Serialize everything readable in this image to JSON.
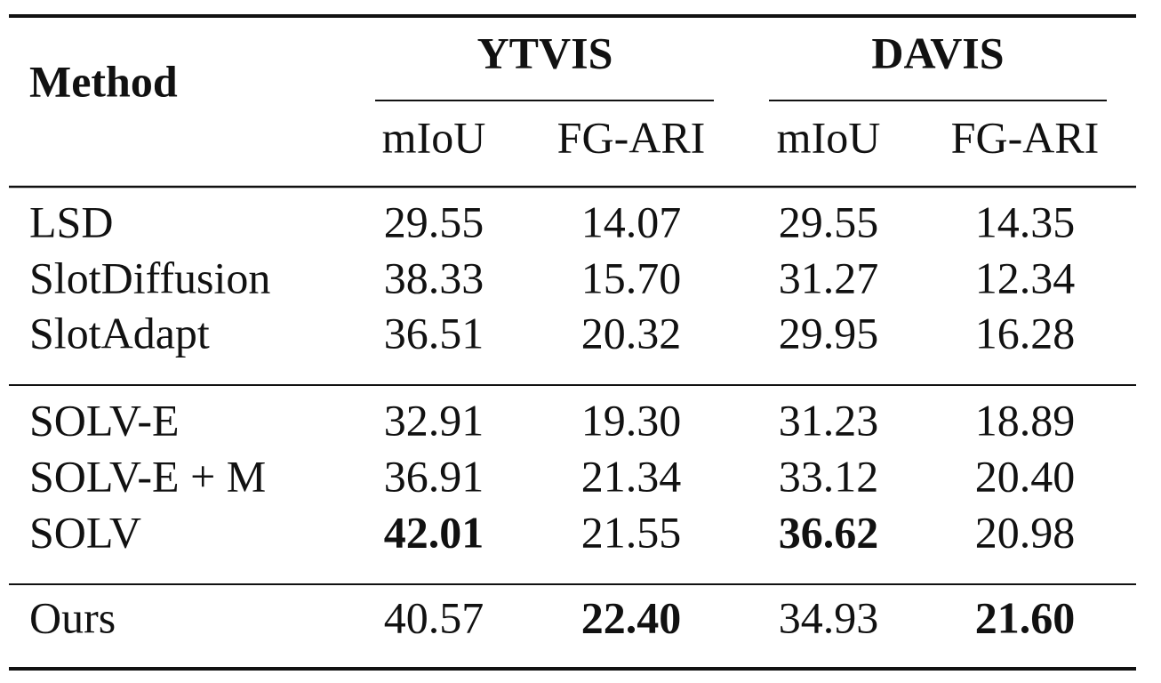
{
  "table": {
    "header": {
      "method": "Method",
      "groups": [
        {
          "name": "YTVIS",
          "columns": [
            "mIoU",
            "FG-ARI"
          ]
        },
        {
          "name": "DAVIS",
          "columns": [
            "mIoU",
            "FG-ARI"
          ]
        }
      ]
    },
    "sections": [
      [
        {
          "method": "LSD",
          "values": [
            "29.55",
            "14.07",
            "29.55",
            "14.35"
          ]
        },
        {
          "method": "SlotDiffusion",
          "values": [
            "38.33",
            "15.70",
            "31.27",
            "12.34"
          ]
        },
        {
          "method": "SlotAdapt",
          "values": [
            "36.51",
            "20.32",
            "29.95",
            "16.28"
          ]
        }
      ],
      [
        {
          "method": "SOLV-E",
          "values": [
            "32.91",
            "19.30",
            "31.23",
            "18.89"
          ]
        },
        {
          "method": "SOLV-E + M",
          "values": [
            "36.91",
            "21.34",
            "33.12",
            "20.40"
          ]
        },
        {
          "method": "SOLV",
          "values": [
            "42.01",
            "21.55",
            "36.62",
            "20.98"
          ],
          "bold": [
            0,
            2
          ]
        }
      ],
      [
        {
          "method": "Ours",
          "values": [
            "40.57",
            "22.40",
            "34.93",
            "21.60"
          ],
          "bold": [
            1,
            3
          ]
        }
      ]
    ]
  }
}
